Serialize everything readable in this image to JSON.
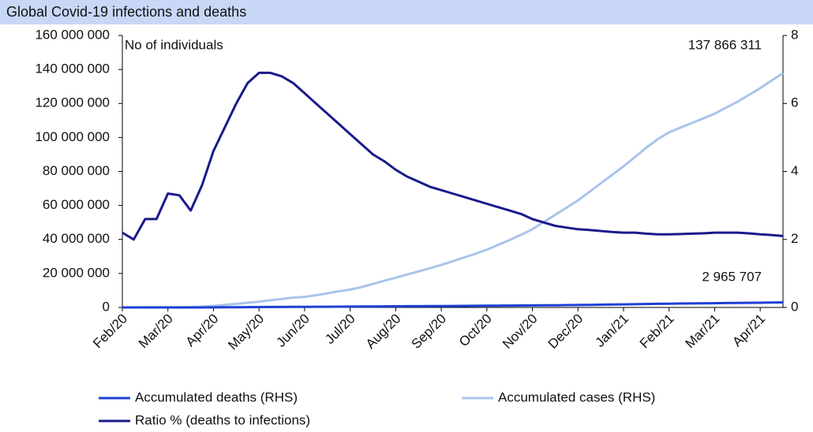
{
  "chart_data": {
    "type": "line",
    "title": "Global Covid-19 infections and deaths",
    "annotations": [
      "No of individuals",
      "137 866 311",
      "2 965 707"
    ],
    "categories": [
      "Feb/20",
      null,
      null,
      null,
      "Mar/20",
      null,
      null,
      null,
      "Apr/20",
      null,
      null,
      null,
      "May/20",
      null,
      null,
      null,
      "Jun/20",
      null,
      null,
      null,
      "Jul/20",
      null,
      null,
      null,
      "Aug/20",
      null,
      null,
      null,
      "Sep/20",
      null,
      null,
      null,
      "Oct/20",
      null,
      null,
      null,
      "Nov/20",
      null,
      null,
      null,
      "Dec/20",
      null,
      null,
      null,
      "Jan/21",
      null,
      null,
      null,
      "Feb/21",
      null,
      null,
      null,
      "Mar/21",
      null,
      null,
      null,
      "Apr/21",
      null,
      null
    ],
    "series": [
      {
        "name": "Accumulated deaths (RHS)",
        "color": "#1f3fd6",
        "axis": "y",
        "values": [
          300,
          1000,
          2000,
          2800,
          3000,
          3800,
          6500,
          15000,
          40000,
          90000,
          140000,
          190000,
          230000,
          265000,
          300000,
          340000,
          370000,
          405000,
          440000,
          475000,
          510000,
          550000,
          595000,
          640000,
          680000,
          720000,
          765000,
          810000,
          850000,
          890000,
          930000,
          970000,
          1010000,
          1050000,
          1095000,
          1140000,
          1190000,
          1250000,
          1320000,
          1390000,
          1460000,
          1550000,
          1640000,
          1730000,
          1820000,
          1920000,
          2030000,
          2140000,
          2240000,
          2310000,
          2380000,
          2450000,
          2520000,
          2590000,
          2660000,
          2730000,
          2790000,
          2880000,
          2965707
        ]
      },
      {
        "name": "Accumulated cases  (RHS)",
        "color": "#a9c4ea",
        "axis": "y",
        "values": [
          10000,
          40000,
          70000,
          80000,
          90000,
          120000,
          250000,
          500000,
          900000,
          1500000,
          2100000,
          2800000,
          3400000,
          4200000,
          5000000,
          5800000,
          6200000,
          7200000,
          8300000,
          9500000,
          10500000,
          12000000,
          13800000,
          15700000,
          17500000,
          19400000,
          21200000,
          23100000,
          25000000,
          27200000,
          29400000,
          31600000,
          34000000,
          36800000,
          39700000,
          42700000,
          46000000,
          50300000,
          54500000,
          58700000,
          63000000,
          68000000,
          73000000,
          78000000,
          83000000,
          88500000,
          94000000,
          99000000,
          103000000,
          105800000,
          108500000,
          111200000,
          114000000,
          117500000,
          121000000,
          125000000,
          129000000,
          133500000,
          137866311
        ]
      },
      {
        "name": "Ratio % (deaths to infections)",
        "color": "#1a1a8c",
        "axis": "y2",
        "values": [
          2.2,
          2.0,
          2.6,
          2.6,
          3.35,
          3.3,
          2.85,
          3.6,
          4.6,
          5.3,
          6.0,
          6.6,
          6.9,
          6.9,
          6.8,
          6.6,
          6.3,
          6.0,
          5.7,
          5.4,
          5.1,
          4.8,
          4.5,
          4.3,
          4.05,
          3.85,
          3.7,
          3.55,
          3.45,
          3.35,
          3.25,
          3.15,
          3.05,
          2.95,
          2.85,
          2.75,
          2.6,
          2.5,
          2.4,
          2.35,
          2.3,
          2.28,
          2.25,
          2.22,
          2.2,
          2.2,
          2.17,
          2.15,
          2.15,
          2.16,
          2.17,
          2.18,
          2.2,
          2.2,
          2.2,
          2.18,
          2.15,
          2.13,
          2.1
        ]
      }
    ],
    "ylim": [
      0,
      160000000
    ],
    "yticks": [
      0,
      {
        "value": 20000000,
        "label": "20 000 000"
      },
      {
        "value": 40000000,
        "label": "40 000 000"
      },
      {
        "value": 60000000,
        "label": "60 000 000"
      },
      {
        "value": 80000000,
        "label": "80 000 000"
      },
      {
        "value": 100000000,
        "label": "100 000 000"
      },
      {
        "value": 120000000,
        "label": "120 000 000"
      },
      {
        "value": 140000000,
        "label": "140 000 000"
      },
      {
        "value": 160000000,
        "label": "160 000 000"
      }
    ],
    "y2lim": [
      0,
      8
    ],
    "y2ticks": [
      0,
      2,
      4,
      6,
      8
    ],
    "grid": false
  }
}
